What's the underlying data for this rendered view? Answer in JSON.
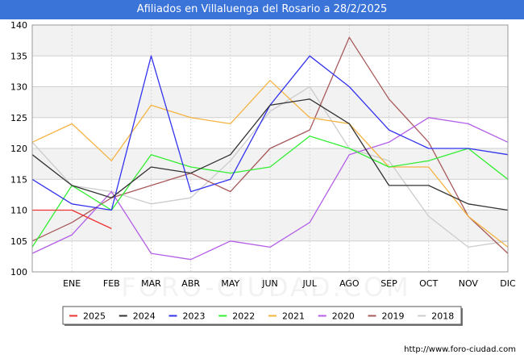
{
  "title": "Afiliados en Villaluenga del Rosario a 28/2/2025",
  "source": "http://www.foro-ciudad.com",
  "watermark": "FORO-CIUDAD.COM",
  "chart_data": {
    "type": "line",
    "categories": [
      "",
      "ENE",
      "FEB",
      "MAR",
      "ABR",
      "MAY",
      "JUN",
      "JUL",
      "AGO",
      "SEP",
      "OCT",
      "NOV",
      "DIC"
    ],
    "ylim": [
      100,
      140
    ],
    "yticks": [
      100,
      105,
      110,
      115,
      120,
      125,
      130,
      135,
      140
    ],
    "grid": true,
    "legend_position": "bottom",
    "series": [
      {
        "name": "2025",
        "color": "#ee3333",
        "values": [
          110,
          110,
          107,
          null,
          null,
          null,
          null,
          null,
          null,
          null,
          null,
          null,
          null
        ]
      },
      {
        "name": "2024",
        "color": "#333333",
        "values": [
          119,
          114,
          112,
          117,
          116,
          119,
          127,
          128,
          124,
          114,
          114,
          111,
          110
        ]
      },
      {
        "name": "2023",
        "color": "#3333ee",
        "values": [
          115,
          111,
          110,
          135,
          113,
          115,
          127,
          135,
          130,
          123,
          120,
          120,
          119
        ]
      },
      {
        "name": "2022",
        "color": "#33ee33",
        "values": [
          104,
          114,
          110,
          119,
          117,
          116,
          117,
          122,
          120,
          117,
          118,
          120,
          115
        ]
      },
      {
        "name": "2021",
        "color": "#f5b342",
        "values": [
          121,
          124,
          118,
          127,
          125,
          124,
          131,
          125,
          124,
          117,
          117,
          109,
          104
        ]
      },
      {
        "name": "2020",
        "color": "#b45ee8",
        "values": [
          103,
          106,
          113,
          103,
          102,
          105,
          104,
          108,
          119,
          121,
          125,
          124,
          121
        ]
      },
      {
        "name": "2019",
        "color": "#a85a5a",
        "values": [
          105,
          108,
          112,
          114,
          116,
          113,
          120,
          123,
          138,
          128,
          121,
          109,
          103
        ]
      },
      {
        "name": "2018",
        "color": "#cccccc",
        "values": [
          121,
          114,
          113,
          111,
          112,
          118,
          126,
          130,
          120,
          118,
          109,
          104,
          105
        ]
      }
    ]
  }
}
